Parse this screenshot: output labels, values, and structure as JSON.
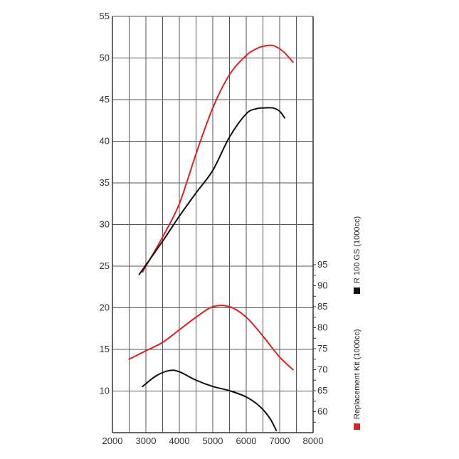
{
  "chart_data": {
    "type": "line",
    "x_axis": {
      "min": 2000,
      "max": 8000,
      "ticks": [
        "2000",
        "3000",
        "4000",
        "5000",
        "6000",
        "7000",
        "8000"
      ]
    },
    "y_axis_left": {
      "min": 5,
      "max": 55,
      "ticks": [
        "10",
        "15",
        "20",
        "25",
        "30",
        "35",
        "40",
        "45",
        "50",
        "55"
      ]
    },
    "y_axis_right": {
      "min": 55,
      "max": 95,
      "ticks": [
        "60",
        "65",
        "70",
        "75",
        "80",
        "85",
        "90",
        "95"
      ]
    },
    "grid": true,
    "legend": {
      "placement": "right-vertical",
      "entries": [
        {
          "label": "R 100 GS (1000cc)",
          "color": "#111111"
        },
        {
          "label": "Replacement Kit (1000cc)",
          "color": "#dd2222"
        }
      ]
    },
    "series": [
      {
        "legend_index": 1,
        "axis": "left",
        "color": "#dd2222",
        "x": [
          2900,
          3500,
          4000,
          4500,
          5000,
          5500,
          6000,
          6300,
          6500,
          6800,
          7100,
          7400
        ],
        "y": [
          24.3,
          28.5,
          32.5,
          38.5,
          44.0,
          48.0,
          50.3,
          51.1,
          51.4,
          51.5,
          50.8,
          49.5
        ]
      },
      {
        "legend_index": 0,
        "axis": "left",
        "color": "#111111",
        "x": [
          2800,
          3500,
          4000,
          4500,
          5000,
          5500,
          6000,
          6300,
          6500,
          6800,
          7000,
          7150
        ],
        "y": [
          24.0,
          28.0,
          31.0,
          33.8,
          36.5,
          40.5,
          43.3,
          43.9,
          44.0,
          44.0,
          43.6,
          42.8
        ]
      },
      {
        "legend_index": 1,
        "axis": "right",
        "color": "#dd2222",
        "x": [
          2500,
          3000,
          3500,
          4000,
          4500,
          5000,
          5500,
          6000,
          6500,
          7000,
          7400
        ],
        "y": [
          72.5,
          74.5,
          76.5,
          79.5,
          82.5,
          85.0,
          85.0,
          82.5,
          78.0,
          73.0,
          70.0
        ]
      },
      {
        "legend_index": 0,
        "axis": "right",
        "color": "#111111",
        "x": [
          2900,
          3300,
          3700,
          4000,
          4500,
          5000,
          5500,
          6000,
          6400,
          6700,
          6900
        ],
        "y": [
          66.0,
          68.5,
          69.8,
          69.5,
          67.5,
          66.0,
          65.0,
          63.5,
          61.3,
          58.5,
          55.5
        ]
      }
    ]
  }
}
